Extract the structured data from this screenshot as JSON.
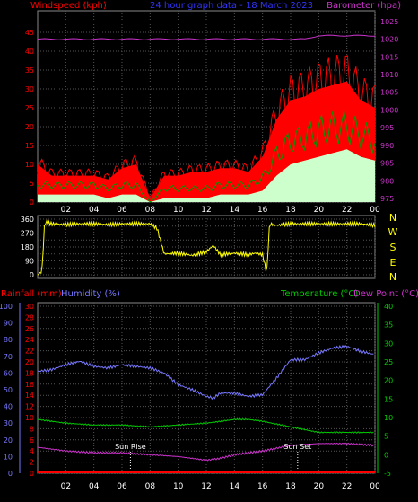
{
  "header": {
    "left": "Windspeed (kph)",
    "center": "24 hour graph data - 18 March 2023",
    "right": "Barometer (hpa)"
  },
  "compass": [
    "N",
    "W",
    "S",
    "E",
    "N"
  ],
  "lower_labels": {
    "rainfall": "Rainfall (mm)",
    "humidity": "Humidity (%)",
    "temperature": "Temperature (°C)",
    "dewpoint": "Dew Point (°C)",
    "sunrise": "Sun Rise",
    "sunset": "Sun Set"
  },
  "colors": {
    "gust": "#ff0000",
    "wind_avg": "#009900",
    "wind_low": "#ccffcc",
    "barometer": "#cc33cc",
    "direction": "#ffff00",
    "humidity": "#7777ff",
    "temperature": "#00cc00",
    "dewpoint": "#cc33cc",
    "rainfall": "#ff0000",
    "axis_left": "#ff0000",
    "axis_right": "#cc33cc",
    "axis_humidity": "#7777ff",
    "axis_temp": "#00cc00",
    "grid": "#555555",
    "tick_text": "#ffffff"
  },
  "chart_data": [
    {
      "type": "area",
      "name": "wind_and_barometer",
      "x_ticks": [
        "02",
        "04",
        "06",
        "08",
        "10",
        "12",
        "14",
        "16",
        "18",
        "20",
        "22",
        "00"
      ],
      "x": [
        0,
        1,
        2,
        3,
        4,
        5,
        6,
        7,
        8,
        9,
        10,
        11,
        12,
        13,
        14,
        15,
        16,
        17,
        18,
        19,
        20,
        21,
        22,
        23,
        24
      ],
      "series": [
        {
          "name": "gust",
          "axis": "left",
          "values": [
            10,
            7,
            7,
            7,
            7,
            6,
            9,
            10,
            1,
            7,
            7,
            8,
            8,
            9,
            9,
            8,
            12,
            22,
            27,
            28,
            30,
            31,
            32,
            27,
            25
          ]
        },
        {
          "name": "average",
          "axis": "left",
          "values": [
            5,
            5,
            5,
            5,
            5,
            4,
            5,
            5,
            0,
            4,
            4,
            4,
            4,
            5,
            5,
            5,
            7,
            14,
            18,
            19,
            21,
            22,
            22,
            20,
            18
          ]
        },
        {
          "name": "low",
          "axis": "left",
          "values": [
            2,
            2,
            2,
            2,
            2,
            1,
            2,
            2,
            0,
            1,
            1,
            1,
            1,
            2,
            2,
            2,
            3,
            7,
            10,
            11,
            12,
            13,
            14,
            12,
            11
          ]
        },
        {
          "name": "barometer",
          "axis": "right",
          "values": [
            1020,
            1020,
            1020,
            1020,
            1020,
            1020,
            1020,
            1020,
            1020,
            1020,
            1020,
            1020,
            1020,
            1020,
            1020,
            1020,
            1020,
            1020,
            1020,
            1020,
            1021,
            1021,
            1021,
            1021,
            1021
          ]
        }
      ],
      "y_left": {
        "ticks": [
          0,
          5,
          10,
          15,
          20,
          25,
          30,
          35,
          40,
          45
        ],
        "range": [
          0,
          45
        ]
      },
      "y_right": {
        "ticks": [
          975,
          980,
          985,
          990,
          995,
          1000,
          1005,
          1010,
          1015,
          1020,
          1025
        ],
        "range": [
          975,
          1027
        ]
      }
    },
    {
      "type": "line",
      "name": "wind_direction",
      "series": [
        {
          "name": "direction",
          "x": [
            0,
            0.3,
            0.5,
            1,
            2,
            3,
            4,
            5,
            6,
            7,
            8,
            8.5,
            9,
            10,
            11,
            12,
            12.5,
            13,
            14,
            15,
            15.5,
            16,
            16.3,
            16.5,
            17,
            18,
            19,
            20,
            21,
            22,
            23,
            24
          ],
          "values": [
            0,
            20,
            340,
            330,
            325,
            330,
            330,
            325,
            330,
            330,
            330,
            300,
            135,
            140,
            125,
            150,
            190,
            130,
            140,
            130,
            140,
            130,
            10,
            330,
            320,
            330,
            330,
            330,
            330,
            330,
            330,
            320
          ]
        }
      ],
      "y_ticks": [
        0,
        45,
        90,
        135,
        180,
        225,
        270,
        315,
        360
      ],
      "y_range": [
        0,
        360
      ]
    },
    {
      "type": "line",
      "name": "temperature_humidity",
      "series": [
        {
          "name": "humidity",
          "axis": "humidity",
          "x": [
            0,
            1,
            2,
            3,
            4,
            5,
            6,
            7,
            8,
            9,
            10,
            11,
            12,
            12.5,
            13,
            14,
            15,
            16,
            17,
            18,
            19,
            20,
            21,
            22,
            23,
            24
          ],
          "values": [
            61,
            62,
            65,
            67,
            64,
            63,
            65,
            64,
            63,
            60,
            53,
            50,
            46,
            45,
            48,
            48,
            46,
            47,
            57,
            68,
            68,
            72,
            75,
            76,
            73,
            71
          ]
        },
        {
          "name": "temperature",
          "axis": "temp",
          "x": [
            0,
            2,
            4,
            6,
            8,
            10,
            12,
            14,
            15,
            16,
            18,
            20,
            22,
            24
          ],
          "values": [
            9.5,
            8.5,
            8,
            8,
            7.5,
            8,
            8.5,
            9.5,
            9.5,
            9,
            7.5,
            6,
            6,
            6
          ]
        },
        {
          "name": "dewpoint",
          "axis": "temp",
          "x": [
            0,
            2,
            4,
            6,
            8,
            10,
            12,
            13,
            14,
            16,
            18,
            20,
            22,
            24
          ],
          "values": [
            2,
            1,
            0.5,
            0.5,
            0,
            -0.5,
            -1.5,
            -1,
            0,
            1,
            2.5,
            3,
            3,
            2.5
          ]
        },
        {
          "name": "rainfall",
          "axis": "rain",
          "x": [
            0,
            24
          ],
          "values": [
            0,
            0
          ]
        }
      ],
      "y_humidity": {
        "ticks": [
          0,
          10,
          20,
          30,
          40,
          50,
          60,
          70,
          80,
          90,
          100
        ],
        "range": [
          0,
          100
        ]
      },
      "y_rain": {
        "ticks": [
          0,
          2,
          4,
          6,
          8,
          10,
          12,
          14,
          16,
          18,
          20,
          22,
          24,
          26,
          28,
          30
        ],
        "range": [
          0,
          30
        ]
      },
      "y_temp": {
        "ticks": [
          -5,
          0,
          5,
          10,
          15,
          20,
          25,
          30,
          35,
          40
        ],
        "range": [
          -5,
          40
        ]
      },
      "sunrise_hour": 6.6,
      "sunset_hour": 18.5
    }
  ]
}
